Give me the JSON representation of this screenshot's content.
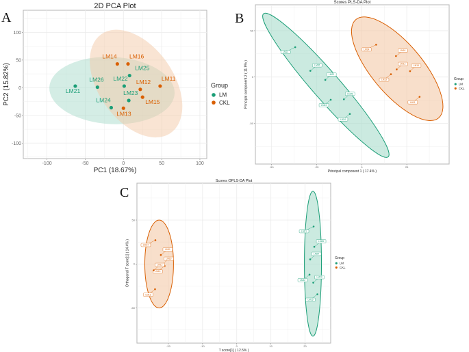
{
  "colors": {
    "LM": "#1b9e77",
    "CKL": "#d95f02",
    "CKL_fill": "#f4c9a8",
    "LM_fill": "#a9dccb",
    "grid": "#ebebeb",
    "border": "#b5b5b5"
  },
  "chart_data": [
    {
      "panel": "A",
      "type": "scatter",
      "title": "2D PCA Plot",
      "xlabel": "PC1 (18.67%)",
      "ylabel": "PC2 (15.82%)",
      "xlim": [
        -131,
        109
      ],
      "ylim": [
        -128,
        140
      ],
      "xticks": [
        -100,
        -50,
        0,
        50,
        100
      ],
      "yticks": [
        -100,
        -50,
        0,
        50,
        100
      ],
      "grid": true,
      "label_style": "text",
      "legend": {
        "title": "Group",
        "entries": [
          "LM",
          "CKL"
        ],
        "placement": "right"
      },
      "series": [
        {
          "name": "LM",
          "points": [
            {
              "label": "LM21",
              "x": -63,
              "y": 3
            },
            {
              "label": "LM26",
              "x": -34,
              "y": 1
            },
            {
              "label": "LM22",
              "x": 1,
              "y": 3
            },
            {
              "label": "LM25",
              "x": 8,
              "y": 22
            },
            {
              "label": "LM23",
              "x": 7,
              "y": -23
            },
            {
              "label": "LM24",
              "x": -16,
              "y": -36
            }
          ],
          "ellipse": {
            "cx": -15,
            "cy": -5,
            "rx": 82,
            "ry": 44,
            "angle": 3
          }
        },
        {
          "name": "CKL",
          "points": [
            {
              "label": "LM14",
              "x": -8,
              "y": 43
            },
            {
              "label": "LM16",
              "x": 6,
              "y": 43
            },
            {
              "label": "LM12",
              "x": 22,
              "y": -3
            },
            {
              "label": "LM11",
              "x": 48,
              "y": 3
            },
            {
              "label": "LM15",
              "x": 25,
              "y": -17
            },
            {
              "label": "LM13",
              "x": 0,
              "y": -37
            }
          ],
          "ellipse": {
            "cx": 16.5,
            "cy": 7.5,
            "rx": 79,
            "ry": 49,
            "angle": 55
          }
        }
      ]
    },
    {
      "panel": "B",
      "type": "scatter",
      "title": "Scores PLS-DA Plot",
      "xlabel": "Principal component 1 ( 17.4% )",
      "ylabel": "Principal component 2 ( 11.9% )",
      "xlim": [
        -59,
        48.5
      ],
      "ylim": [
        -94,
        78
      ],
      "xticks": [
        -50,
        -25,
        0,
        25
      ],
      "yticks": [
        -50,
        0,
        50
      ],
      "grid": true,
      "label_style": "box",
      "legend": {
        "title": "Group",
        "entries": [
          "LM",
          "CKL"
        ],
        "placement": "right"
      },
      "series": [
        {
          "name": "LM",
          "points": [
            {
              "label": "LM21",
              "x": -36.9,
              "y": 32.2
            },
            {
              "label": "LM26",
              "x": -28.5,
              "y": 6.7
            },
            {
              "label": "LM22",
              "x": -20.2,
              "y": -3.1
            },
            {
              "label": "LM23",
              "x": -17.2,
              "y": -24.6
            },
            {
              "label": "LM25",
              "x": -9.9,
              "y": -24.1
            },
            {
              "label": "LM24",
              "x": -6.6,
              "y": -39.9
            }
          ],
          "ellipse": {
            "cx": -19.9,
            "cy": -9,
            "rx": 52.7,
            "ry": 7.6,
            "angle": 49
          }
        },
        {
          "name": "CKL",
          "points": [
            {
              "label": "LM14",
              "x": 8,
              "y": 34.9
            },
            {
              "label": "LM16",
              "x": 19,
              "y": 22.6
            },
            {
              "label": "LM12",
              "x": 19.4,
              "y": 8.2
            },
            {
              "label": "LM13",
              "x": 16.2,
              "y": 3
            },
            {
              "label": "LM15",
              "x": 26.8,
              "y": 6.3
            },
            {
              "label": "LM11",
              "x": 32.1,
              "y": -21.4
            }
          ],
          "ellipse": {
            "cx": 19.7,
            "cy": 8.9,
            "rx": 35.7,
            "ry": 14.1,
            "angle": 50
          }
        }
      ]
    },
    {
      "panel": "C",
      "type": "scatter",
      "title": "Scores OPLS-DA Plot",
      "xlabel": "T score[1] ( 12.5% )",
      "ylabel": "Orthogonal T score[1] ( 14.4% )",
      "xlim": [
        -29.2,
        27.5
      ],
      "ylim": [
        -90,
        92
      ],
      "xticks": [
        -20,
        -10,
        0,
        10,
        20
      ],
      "yticks": [
        -50,
        0,
        50
      ],
      "grid": true,
      "label_style": "box",
      "legend": {
        "title": "Group",
        "entries": [
          "LM",
          "CKL"
        ],
        "placement": "right"
      },
      "series": [
        {
          "name": "LM",
          "points": [
            {
              "label": "LM21",
              "x": 22.5,
              "y": 42.7
            },
            {
              "label": "LM26",
              "x": 22.7,
              "y": 19.6
            },
            {
              "label": "LM24",
              "x": 21.5,
              "y": 5.3
            },
            {
              "label": "LM22",
              "x": 21.3,
              "y": -12.1
            },
            {
              "label": "LM23",
              "x": 22.4,
              "y": -21.2
            },
            {
              "label": "LM25",
              "x": 23.6,
              "y": -34.4
            }
          ],
          "ellipse": {
            "cx": 22.3,
            "cy": 0.4,
            "rx": 2.5,
            "ry": 82.5,
            "angle": 0
          }
        },
        {
          "name": "CKL",
          "points": [
            {
              "label": "LM14",
              "x": -23.8,
              "y": 27.1
            },
            {
              "label": "LM11",
              "x": -22.2,
              "y": 10.3
            },
            {
              "label": "LM16",
              "x": -21.7,
              "y": -0.2
            },
            {
              "label": "LM15",
              "x": -21.1,
              "y": -2.2
            },
            {
              "label": "LM12",
              "x": -24.3,
              "y": -7.2
            },
            {
              "label": "LM13",
              "x": -23.9,
              "y": -28.7
            }
          ],
          "ellipse": {
            "cx": -22.7,
            "cy": 0,
            "rx": 4.2,
            "ry": 50,
            "angle": 0
          }
        }
      ]
    }
  ]
}
